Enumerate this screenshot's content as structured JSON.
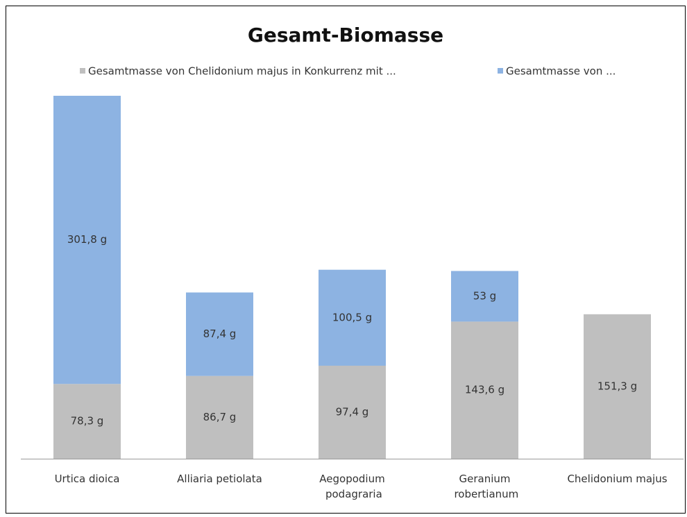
{
  "chart_data": {
    "type": "stacked_bar",
    "title": "Gesamt-Biomasse",
    "categories": [
      "Urtica dioica",
      "Alliaria petiolata",
      "Aegopodium podagraria",
      "Geranium robertianum",
      "Chelidonium majus"
    ],
    "series": [
      {
        "name": "Gesamtmasse von Chelidonium majus in Konkurrenz mit ...",
        "color": "#bfbfbf",
        "values": [
          78.3,
          86.7,
          97.4,
          143.6,
          151.3
        ],
        "value_labels": [
          "78,3 g",
          "86,7 g",
          "97,4 g",
          "143,6 g",
          "151,3 g"
        ]
      },
      {
        "name": "Gesamtmasse von ...",
        "color": "#8db3e2",
        "values": [
          301.8,
          87.4,
          100.5,
          53,
          null
        ],
        "value_labels": [
          "301,8 g",
          "87,4 g",
          "100,5 g",
          "53 g",
          null
        ]
      }
    ],
    "legend": "top"
  }
}
